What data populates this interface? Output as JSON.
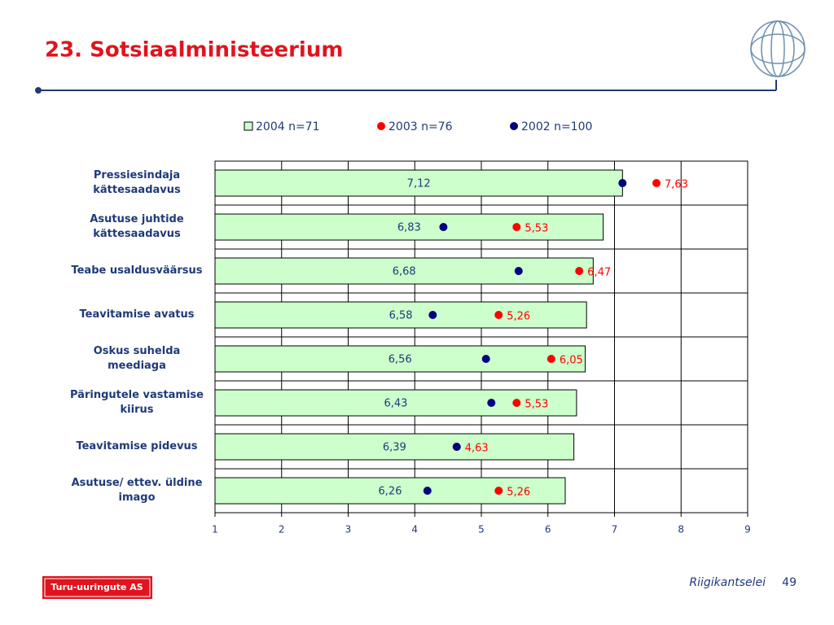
{
  "header": {
    "title": "23. Sotsiaalministeerium"
  },
  "chart_data": {
    "type": "bar",
    "orientation": "horizontal",
    "categories": [
      "Pressiesindaja kättesaadavus",
      "Asutuse juhtide kättesaadavus",
      "Teabe usaldusväärsus",
      "Teavitamise avatus",
      "Oskus suhelda meediaga",
      "Päringutele vastamise kiirus",
      "Teavitamise pidevus",
      "Asutuse/ ettev. üldine imago"
    ],
    "series": [
      {
        "name": "2004 n=71",
        "marker": "bar",
        "color": "#ccffcc",
        "label_color": "#1f3a7a",
        "values": [
          7.12,
          6.83,
          6.68,
          6.58,
          6.56,
          6.43,
          6.39,
          6.26
        ],
        "value_labels": [
          "7,12",
          "6,83",
          "6,68",
          "6,58",
          "6,56",
          "6,43",
          "6,39",
          "6,26"
        ]
      },
      {
        "name": "2003 n=76",
        "marker": "dot",
        "color": "#ff0000",
        "label_color": "#ff0000",
        "values": [
          7.63,
          5.53,
          6.47,
          5.26,
          6.05,
          5.53,
          4.63,
          5.26
        ],
        "value_labels": [
          "7,63",
          "5,53",
          "6,47",
          "5,26",
          "6,05",
          "5,53",
          "4,63",
          "5,26"
        ]
      },
      {
        "name": "2002 n=100",
        "marker": "dot",
        "color": "#000080",
        "values": [
          7.12,
          4.43,
          5.56,
          4.27,
          5.07,
          5.15,
          4.63,
          4.19
        ]
      }
    ],
    "xlim": [
      1,
      9
    ],
    "xticks": [
      1,
      2,
      3,
      4,
      5,
      6,
      7,
      8,
      9
    ],
    "grid": true
  },
  "footer": {
    "logo": "Turu-uuringute AS",
    "source": "Riigikantselei",
    "page": "49"
  }
}
